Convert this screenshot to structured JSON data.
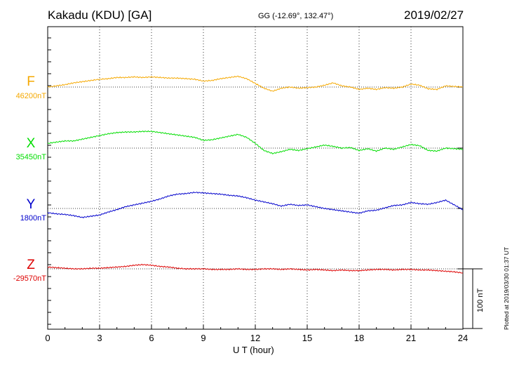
{
  "header": {
    "station": "Kakadu (KDU)  [GA]",
    "coords": "GG (-12.69°, 132.47°)",
    "date": "2019/02/27"
  },
  "plotted_note": "Plotted at 2019/03/30 01:37 UT",
  "scale_label": "100 nT",
  "colors": {
    "F": "#f5a800",
    "X": "#00dd00",
    "Y": "#0000cc",
    "Z": "#dd0000",
    "axis": "#000000"
  },
  "chart_data": {
    "type": "line",
    "title": "Kakadu (KDU)  [GA]",
    "xlabel": "U T (hour)",
    "ylabel": "",
    "xlim": [
      0,
      24
    ],
    "x_ticks": [
      0,
      3,
      6,
      9,
      12,
      15,
      18,
      21,
      24
    ],
    "x_tick_labels": [
      "0",
      "3",
      "6",
      "9",
      "12",
      "15",
      "18",
      "21",
      "24"
    ],
    "grid": "dotted vertical every 3 h; dotted baseline per component",
    "scale_bar_nT": 100,
    "series": [
      {
        "name": "F",
        "baseline_label": "46200nT",
        "baseline_nT": 46200,
        "x": [
          0,
          0.5,
          1,
          1.5,
          2,
          2.5,
          3,
          3.5,
          4,
          4.5,
          5,
          5.5,
          6,
          6.5,
          7,
          7.5,
          8,
          8.5,
          9,
          9.5,
          10,
          10.5,
          11,
          11.5,
          12,
          12.5,
          13,
          13.5,
          14,
          14.5,
          15,
          15.5,
          16,
          16.5,
          17,
          17.5,
          18,
          18.5,
          19,
          19.5,
          20,
          20.5,
          21,
          21.5,
          22,
          22.5,
          23,
          23.5,
          24
        ],
        "values": [
          0,
          2,
          4,
          7,
          9,
          11,
          13,
          14,
          16,
          16,
          17,
          16,
          17,
          16,
          15,
          15,
          14,
          13,
          10,
          11,
          14,
          16,
          18,
          14,
          6,
          -2,
          -7,
          -2,
          0,
          -2,
          -1,
          0,
          3,
          7,
          2,
          0,
          -4,
          -2,
          -4,
          -1,
          -2,
          0,
          5,
          3,
          -3,
          -4,
          2,
          1,
          0
        ]
      },
      {
        "name": "X",
        "baseline_label": "35450nT",
        "baseline_nT": 35450,
        "x": [
          0,
          0.5,
          1,
          1.5,
          2,
          2.5,
          3,
          3.5,
          4,
          4.5,
          5,
          5.5,
          6,
          6.5,
          7,
          7.5,
          8,
          8.5,
          9,
          9.5,
          10,
          10.5,
          11,
          11.5,
          12,
          12.5,
          13,
          13.5,
          14,
          14.5,
          15,
          15.5,
          16,
          16.5,
          17,
          17.5,
          18,
          18.5,
          19,
          19.5,
          20,
          20.5,
          21,
          21.5,
          22,
          22.5,
          23,
          23.5,
          24
        ],
        "values": [
          8,
          10,
          12,
          12,
          15,
          18,
          21,
          24,
          26,
          27,
          27,
          28,
          28,
          26,
          24,
          22,
          20,
          18,
          13,
          14,
          17,
          20,
          23,
          18,
          8,
          -4,
          -9,
          -6,
          -2,
          -4,
          -1,
          2,
          5,
          3,
          0,
          1,
          -4,
          -1,
          -5,
          0,
          -2,
          2,
          6,
          4,
          -4,
          -5,
          0,
          -1,
          -2
        ]
      },
      {
        "name": "Y",
        "baseline_label": "1800nT",
        "baseline_nT": 1800,
        "x": [
          0,
          0.5,
          1,
          1.5,
          2,
          2.5,
          3,
          3.5,
          4,
          4.5,
          5,
          5.5,
          6,
          6.5,
          7,
          7.5,
          8,
          8.5,
          9,
          9.5,
          10,
          10.5,
          11,
          11.5,
          12,
          12.5,
          13,
          13.5,
          14,
          14.5,
          15,
          15.5,
          16,
          16.5,
          17,
          17.5,
          18,
          18.5,
          19,
          19.5,
          20,
          20.5,
          21,
          21.5,
          22,
          22.5,
          23,
          23.5,
          24
        ],
        "values": [
          -7,
          -9,
          -10,
          -12,
          -15,
          -13,
          -11,
          -6,
          -2,
          3,
          6,
          9,
          12,
          16,
          21,
          24,
          25,
          27,
          26,
          25,
          24,
          22,
          21,
          18,
          14,
          11,
          8,
          4,
          7,
          5,
          6,
          3,
          0,
          -2,
          -4,
          -6,
          -8,
          -4,
          -3,
          1,
          5,
          6,
          10,
          8,
          7,
          10,
          14,
          6,
          -2
        ]
      },
      {
        "name": "Z",
        "baseline_label": "-29570nT",
        "baseline_nT": -29570,
        "x": [
          0,
          0.5,
          1,
          1.5,
          2,
          2.5,
          3,
          3.5,
          4,
          4.5,
          5,
          5.5,
          6,
          6.5,
          7,
          7.5,
          8,
          8.5,
          9,
          9.5,
          10,
          10.5,
          11,
          11.5,
          12,
          12.5,
          13,
          13.5,
          14,
          14.5,
          15,
          15.5,
          16,
          16.5,
          17,
          17.5,
          18,
          18.5,
          19,
          19.5,
          20,
          20.5,
          21,
          21.5,
          22,
          22.5,
          23,
          23.5,
          24
        ],
        "values": [
          3,
          2,
          1,
          0,
          0,
          1,
          1,
          2,
          3,
          4,
          6,
          7,
          6,
          4,
          3,
          1,
          0,
          0,
          0,
          -1,
          -1,
          -1,
          0,
          -1,
          -1,
          0,
          0,
          -1,
          0,
          -1,
          -2,
          -1,
          -2,
          -3,
          -2,
          -3,
          -3,
          -2,
          -1,
          -1,
          -2,
          -1,
          -1,
          -2,
          -2,
          -3,
          -4,
          -5,
          -7
        ]
      }
    ]
  }
}
